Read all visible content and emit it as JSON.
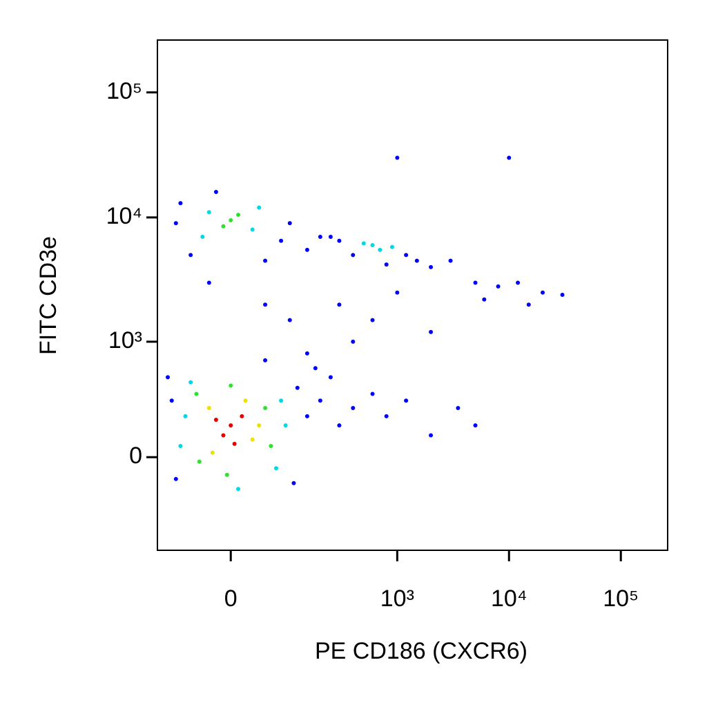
{
  "chart_data": {
    "type": "scatter",
    "x_label": "PE CD186 (CXCR6)",
    "y_label": "FITC CD3e",
    "xscale": "biexponential",
    "yscale": "biexponential",
    "xlim": [
      -140,
      262144
    ],
    "ylim": [
      -650,
      262144
    ],
    "xticks": [
      0,
      {
        "value": 1000,
        "label": "10³"
      },
      {
        "value": 10000,
        "label": "10⁴"
      },
      {
        "value": 100000,
        "label": "10⁵"
      }
    ],
    "yticks": [
      0,
      {
        "value": 1000,
        "label": "10³"
      },
      {
        "value": 10000,
        "label": "10⁴"
      },
      {
        "value": 100000,
        "label": "10⁵"
      }
    ],
    "x": [
      0,
      -10,
      15,
      5,
      -20,
      -30,
      30,
      20,
      -25,
      40,
      -50,
      50,
      -45,
      60,
      0,
      -5,
      -70,
      80,
      -60,
      70,
      10,
      -80,
      90,
      -100,
      120,
      150,
      -90,
      110,
      200,
      250,
      300,
      400,
      600,
      800,
      1200,
      2000,
      3500,
      5000,
      -110,
      180,
      0,
      -10,
      10,
      -30,
      30,
      -40,
      40,
      -80,
      80,
      100,
      -90,
      150,
      -60,
      200,
      -20,
      50,
      600,
      700,
      500,
      900,
      300,
      400,
      1200,
      1500,
      250,
      2000,
      800,
      3000,
      5000,
      8000,
      12000,
      20000,
      30000,
      15000,
      6000,
      50,
      100,
      -30,
      150,
      300,
      600,
      1000,
      2000,
      50,
      400,
      1000,
      10000
    ],
    "y": [
      150,
      100,
      200,
      60,
      180,
      250,
      80,
      300,
      20,
      150,
      350,
      250,
      -20,
      50,
      420,
      -80,
      200,
      300,
      450,
      -50,
      -150,
      50,
      150,
      300,
      400,
      200,
      -100,
      -120,
      300,
      500,
      150,
      250,
      350,
      200,
      300,
      100,
      250,
      150,
      500,
      600,
      9500,
      8500,
      10500,
      11000,
      8000,
      7000,
      12000,
      13000,
      6500,
      9000,
      9000,
      5500,
      5000,
      7000,
      16000,
      4500,
      6000,
      5500,
      6200,
      5800,
      6500,
      5000,
      5000,
      4500,
      7000,
      4000,
      4200,
      4500,
      3000,
      2800,
      3000,
      2500,
      2400,
      2000,
      2200,
      2000,
      1500,
      3000,
      800,
      2000,
      1500,
      2500,
      1200,
      700,
      1000,
      30000,
      30000
    ],
    "colors": [
      "#e00000",
      "#e00000",
      "#e00000",
      "#e00000",
      "#e00000",
      "#f0e000",
      "#f0e000",
      "#f0e000",
      "#f0e000",
      "#f0e000",
      "#30e030",
      "#30e030",
      "#30e030",
      "#30e030",
      "#30e030",
      "#30e030",
      "#00d8e8",
      "#00d8e8",
      "#00d8e8",
      "#00d8e8",
      "#00d8e8",
      "#00d8e8",
      "#00d8e8",
      "#0000ff",
      "#0000ff",
      "#0000ff",
      "#0000ff",
      "#0000ff",
      "#0000ff",
      "#0000ff",
      "#0000ff",
      "#0000ff",
      "#0000ff",
      "#0000ff",
      "#0000ff",
      "#0000ff",
      "#0000ff",
      "#0000ff",
      "#0000ff",
      "#0000ff",
      "#30e030",
      "#30e030",
      "#30e030",
      "#00d8e8",
      "#00d8e8",
      "#00d8e8",
      "#00d8e8",
      "#0000ff",
      "#0000ff",
      "#0000ff",
      "#0000ff",
      "#0000ff",
      "#0000ff",
      "#0000ff",
      "#0000ff",
      "#0000ff",
      "#00d8e8",
      "#00d8e8",
      "#00d8e8",
      "#00d8e8",
      "#0000ff",
      "#0000ff",
      "#0000ff",
      "#0000ff",
      "#0000ff",
      "#0000ff",
      "#0000ff",
      "#0000ff",
      "#0000ff",
      "#0000ff",
      "#0000ff",
      "#0000ff",
      "#0000ff",
      "#0000ff",
      "#0000ff",
      "#0000ff",
      "#0000ff",
      "#0000ff",
      "#0000ff",
      "#0000ff",
      "#0000ff",
      "#0000ff",
      "#0000ff",
      "#0000ff",
      "#0000ff",
      "#0000ff",
      "#0000ff"
    ]
  }
}
